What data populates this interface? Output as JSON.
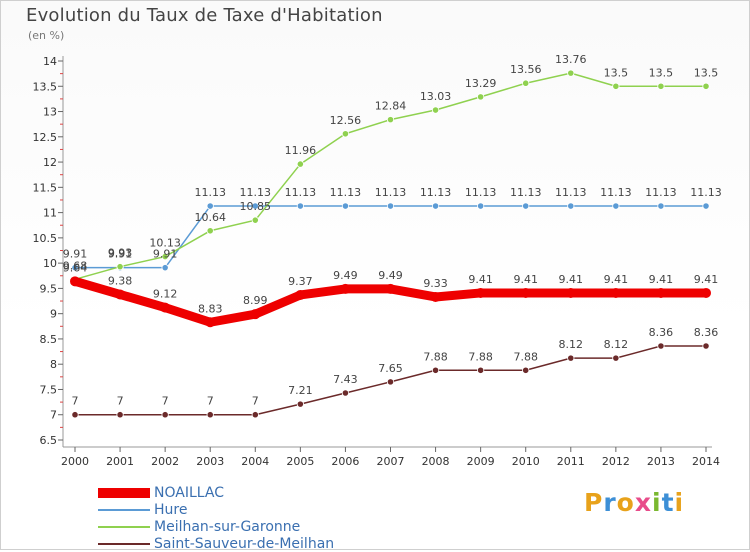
{
  "title": "Evolution du Taux de Taxe d'Habitation",
  "unit": "(en %)",
  "logo": {
    "text": "Proxiti",
    "colors": [
      "#e8a21b",
      "#3d8fd6",
      "#e8a21b",
      "#e84c8a",
      "#7ab82f",
      "#3d8fd6",
      "#e8a21b"
    ]
  },
  "chart_data": {
    "type": "line",
    "title": "Evolution du Taux de Taxe d'Habitation",
    "ylabel": "(en %)",
    "xlabel": "",
    "x": [
      "2000",
      "2001",
      "2002",
      "2003",
      "2004",
      "2005",
      "2006",
      "2007",
      "2008",
      "2009",
      "2010",
      "2011",
      "2012",
      "2013",
      "2014"
    ],
    "ylim": [
      6.5,
      14
    ],
    "yticks": [
      "6.5",
      "7",
      "7.5",
      "8",
      "8.5",
      "9",
      "9.5",
      "10",
      "10.5",
      "11",
      "11.5",
      "12",
      "12.5",
      "13",
      "13.5",
      "14"
    ],
    "grid": false,
    "legend": "bottom-left",
    "series": [
      {
        "name": "NOAILLAC",
        "color": "#ee0000",
        "values": [
          9.64,
          9.38,
          9.12,
          8.83,
          8.99,
          9.37,
          9.49,
          9.49,
          9.33,
          9.41,
          9.41,
          9.41,
          9.41,
          9.41,
          9.41
        ],
        "labels": [
          "9.64",
          "9.38",
          "9.12",
          "8.83",
          "8.99",
          "9.37",
          "9.49",
          "9.49",
          "9.33",
          "9.41",
          "9.41",
          "9.41",
          "9.41",
          "9.41",
          "9.41"
        ]
      },
      {
        "name": "Hure",
        "color": "#5b9bd5",
        "values": [
          9.91,
          9.91,
          9.91,
          11.13,
          11.13,
          11.13,
          11.13,
          11.13,
          11.13,
          11.13,
          11.13,
          11.13,
          11.13,
          11.13,
          11.13
        ],
        "labels": [
          "9.91",
          "9.91",
          "9.91",
          "11.13",
          "11.13",
          "11.13",
          "11.13",
          "11.13",
          "11.13",
          "11.13",
          "11.13",
          "11.13",
          "11.13",
          "11.13",
          "11.13"
        ]
      },
      {
        "name": "Meilhan-sur-Garonne",
        "color": "#8fd14f",
        "values": [
          9.68,
          9.93,
          10.13,
          10.64,
          10.85,
          11.96,
          12.56,
          12.84,
          13.03,
          13.29,
          13.56,
          13.76,
          13.5,
          13.5,
          13.5
        ],
        "labels": [
          "9.68",
          "9.93",
          "10.13",
          "10.64",
          "10.85",
          "11.96",
          "12.56",
          "12.84",
          "13.03",
          "13.29",
          "13.56",
          "13.76",
          "13.5",
          "13.5",
          "13.5"
        ]
      },
      {
        "name": "Saint-Sauveur-de-Meilhan",
        "color": "#6b2a2a",
        "values": [
          7,
          7,
          7,
          7,
          7,
          7.21,
          7.43,
          7.65,
          7.88,
          7.88,
          7.88,
          8.12,
          8.12,
          8.36,
          8.36
        ],
        "labels": [
          "7",
          "7",
          "7",
          "7",
          "7",
          "7.21",
          "7.43",
          "7.65",
          "7.88",
          "7.88",
          "7.88",
          "8.12",
          "8.12",
          "8.36",
          "8.36"
        ]
      }
    ]
  }
}
